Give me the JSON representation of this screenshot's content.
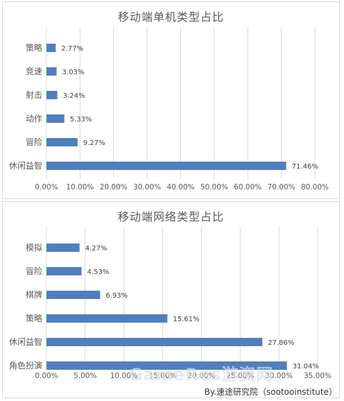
{
  "chart_data": [
    {
      "type": "bar",
      "orientation": "horizontal",
      "title": "移动端单机类型占比",
      "categories": [
        "策略",
        "竞速",
        "射击",
        "动作",
        "冒险",
        "休闲益智"
      ],
      "values": [
        2.77,
        3.03,
        3.24,
        5.33,
        9.27,
        71.46
      ],
      "value_labels": [
        "2.77%",
        "3.03%",
        "3.24%",
        "5.33%",
        "9.27%",
        "71.46%"
      ],
      "xlim": [
        0,
        80
      ],
      "x_ticks": [
        "0.00%",
        "10.00%",
        "20.00%",
        "30.00%",
        "40.00%",
        "50.00%",
        "60.00%",
        "70.00%",
        "80.00%"
      ],
      "grid": true,
      "bar_color": "#4f7fbf"
    },
    {
      "type": "bar",
      "orientation": "horizontal",
      "title": "移动端网络类型占比",
      "categories": [
        "模拟",
        "冒险",
        "棋牌",
        "策略",
        "休闲益智",
        "角色扮演"
      ],
      "values": [
        4.27,
        4.53,
        6.93,
        15.61,
        27.86,
        31.04
      ],
      "value_labels": [
        "4.27%",
        "4.53%",
        "6.93%",
        "15.61%",
        "27.86%",
        "31.04%"
      ],
      "xlim": [
        0,
        35
      ],
      "x_ticks": [
        "0.00%",
        "5.00%",
        "10.00%",
        "15.00%",
        "20.00%",
        "25.00%",
        "30.00%",
        "35.00%"
      ],
      "grid": true,
      "bar_color": "#4f7fbf"
    }
  ],
  "watermark": "GameRes游资网",
  "source_note": "By.速途研究院（sootooinstitute）"
}
